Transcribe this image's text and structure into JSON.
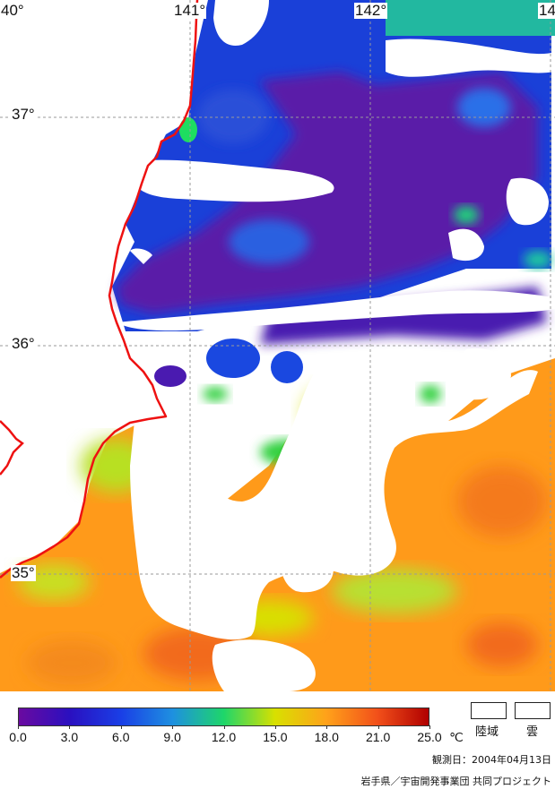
{
  "map": {
    "lon_labels": [
      "40°",
      "141°",
      "142°",
      "14"
    ],
    "lat_labels": [
      "37°",
      "36°",
      "35°"
    ],
    "colors": {
      "land": "#ffffff",
      "cloud": "#ffffff",
      "coastline": "#ee1111",
      "grid": "#9a9a9a"
    }
  },
  "legend": {
    "ticks": [
      "0.0",
      "3.0",
      "6.0",
      "9.0",
      "12.0",
      "15.0",
      "18.0",
      "21.0",
      "25.0"
    ],
    "unit": "℃",
    "gradient": [
      "#6a0aa0",
      "#2a10c0",
      "#1a3fe6",
      "#1e90e0",
      "#1ed66a",
      "#d8e000",
      "#ffa21a",
      "#f2501a",
      "#b00000"
    ],
    "land_label": "陸域",
    "cloud_label": "雲"
  },
  "footer": {
    "date": "観測日：2004年04月13日",
    "credit": "岩手県／宇宙開発事業団 共同プロジェクト"
  }
}
